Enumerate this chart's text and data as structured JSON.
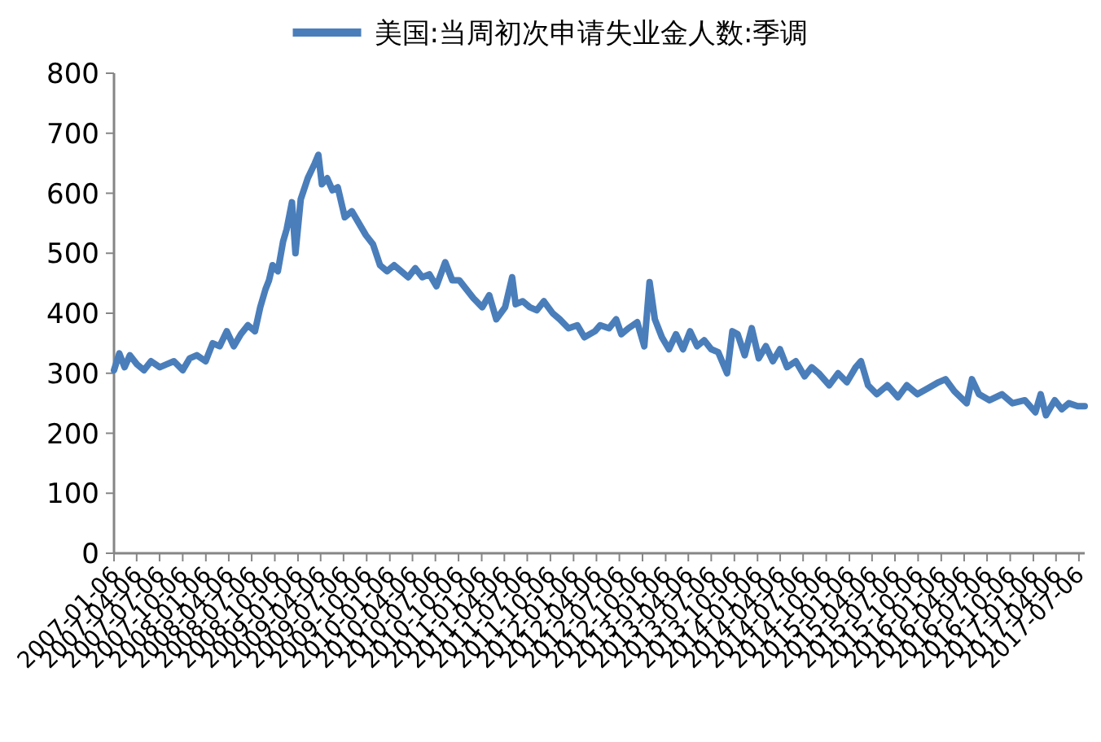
{
  "chart_data": {
    "type": "line",
    "legend": "top",
    "line_style": "solid",
    "xlim": [
      "2007-01-06",
      "2017-07-29"
    ],
    "ylim": [
      0,
      800
    ],
    "yticks": [
      0,
      100,
      200,
      300,
      400,
      500,
      600,
      700,
      800
    ],
    "xticks": [
      "2007-01-06",
      "2007-04-06",
      "2007-07-06",
      "2007-10-06",
      "2008-01-06",
      "2008-04-06",
      "2008-07-06",
      "2008-10-06",
      "2009-01-06",
      "2009-04-06",
      "2009-07-06",
      "2009-10-06",
      "2010-01-06",
      "2010-04-06",
      "2010-07-06",
      "2010-10-06",
      "2011-01-06",
      "2011-04-06",
      "2011-07-06",
      "2011-10-06",
      "2012-01-06",
      "2012-04-06",
      "2012-07-06",
      "2012-10-06",
      "2013-01-06",
      "2013-04-06",
      "2013-07-06",
      "2013-10-06",
      "2014-01-06",
      "2014-04-06",
      "2014-07-06",
      "2014-10-06",
      "2015-01-06",
      "2015-04-06",
      "2015-07-06",
      "2015-10-06",
      "2016-01-06",
      "2016-04-06",
      "2016-07-06",
      "2016-10-06",
      "2017-01-06",
      "2017-04-06",
      "2017-07-06"
    ],
    "series": [
      {
        "name": "美国:当周初次申请失业金人数:季调",
        "color": "#4a7ebb",
        "x": [
          "2007-01-06",
          "2007-01-27",
          "2007-02-17",
          "2007-03-10",
          "2007-04-07",
          "2007-05-05",
          "2007-06-02",
          "2007-07-07",
          "2007-08-04",
          "2007-09-01",
          "2007-10-06",
          "2007-11-03",
          "2007-12-01",
          "2008-01-05",
          "2008-02-02",
          "2008-03-01",
          "2008-03-29",
          "2008-04-26",
          "2008-05-24",
          "2008-06-21",
          "2008-07-19",
          "2008-08-09",
          "2008-08-30",
          "2008-09-13",
          "2008-09-27",
          "2008-10-18",
          "2008-11-08",
          "2008-11-22",
          "2008-12-13",
          "2008-12-27",
          "2009-01-17",
          "2009-02-14",
          "2009-03-14",
          "2009-03-28",
          "2009-04-11",
          "2009-05-02",
          "2009-05-23",
          "2009-06-13",
          "2009-07-11",
          "2009-08-08",
          "2009-09-05",
          "2009-10-03",
          "2009-10-31",
          "2009-11-28",
          "2009-12-26",
          "2010-01-23",
          "2010-02-20",
          "2010-03-20",
          "2010-04-17",
          "2010-05-15",
          "2010-06-12",
          "2010-07-10",
          "2010-08-14",
          "2010-09-11",
          "2010-10-09",
          "2010-11-06",
          "2010-12-04",
          "2011-01-08",
          "2011-02-05",
          "2011-03-05",
          "2011-04-09",
          "2011-05-07",
          "2011-05-21",
          "2011-06-18",
          "2011-07-16",
          "2011-08-13",
          "2011-09-10",
          "2011-10-15",
          "2011-11-12",
          "2011-12-17",
          "2012-01-21",
          "2012-02-18",
          "2012-03-31",
          "2012-04-21",
          "2012-05-26",
          "2012-06-23",
          "2012-07-14",
          "2012-08-11",
          "2012-09-15",
          "2012-10-13",
          "2012-11-03",
          "2012-11-24",
          "2012-12-22",
          "2013-01-19",
          "2013-02-16",
          "2013-03-16",
          "2013-04-13",
          "2013-05-11",
          "2013-06-08",
          "2013-07-06",
          "2013-08-03",
          "2013-09-07",
          "2013-09-28",
          "2013-10-19",
          "2013-11-16",
          "2013-12-14",
          "2014-01-11",
          "2014-02-08",
          "2014-03-08",
          "2014-04-05",
          "2014-05-03",
          "2014-06-07",
          "2014-07-12",
          "2014-08-09",
          "2014-09-06",
          "2014-10-18",
          "2014-11-22",
          "2014-12-27",
          "2015-01-31",
          "2015-02-21",
          "2015-03-21",
          "2015-04-25",
          "2015-06-06",
          "2015-07-18",
          "2015-08-22",
          "2015-10-03",
          "2015-11-14",
          "2015-12-26",
          "2016-01-23",
          "2016-02-27",
          "2016-04-16",
          "2016-05-07",
          "2016-06-04",
          "2016-07-16",
          "2016-09-03",
          "2016-10-15",
          "2016-12-03",
          "2017-01-14",
          "2017-02-04",
          "2017-02-25",
          "2017-04-01",
          "2017-04-29",
          "2017-05-27",
          "2017-07-01",
          "2017-07-29"
        ],
        "values": [
          305,
          333,
          310,
          330,
          315,
          305,
          320,
          310,
          315,
          320,
          305,
          325,
          330,
          320,
          350,
          345,
          370,
          345,
          365,
          380,
          370,
          410,
          440,
          455,
          480,
          470,
          520,
          540,
          585,
          500,
          590,
          625,
          650,
          664,
          615,
          625,
          605,
          610,
          560,
          570,
          550,
          530,
          515,
          480,
          470,
          480,
          470,
          460,
          475,
          460,
          465,
          445,
          485,
          455,
          455,
          440,
          425,
          410,
          430,
          390,
          410,
          460,
          415,
          420,
          410,
          405,
          420,
          400,
          390,
          375,
          380,
          360,
          370,
          380,
          375,
          390,
          365,
          375,
          385,
          345,
          452,
          390,
          360,
          340,
          365,
          340,
          370,
          345,
          355,
          340,
          335,
          300,
          370,
          365,
          330,
          375,
          325,
          345,
          320,
          340,
          310,
          320,
          295,
          310,
          300,
          280,
          300,
          285,
          310,
          320,
          280,
          265,
          280,
          260,
          280,
          265,
          275,
          285,
          290,
          270,
          250,
          290,
          265,
          255,
          265,
          250,
          255,
          235,
          265,
          230,
          255,
          240,
          250,
          245,
          245
        ]
      }
    ]
  }
}
